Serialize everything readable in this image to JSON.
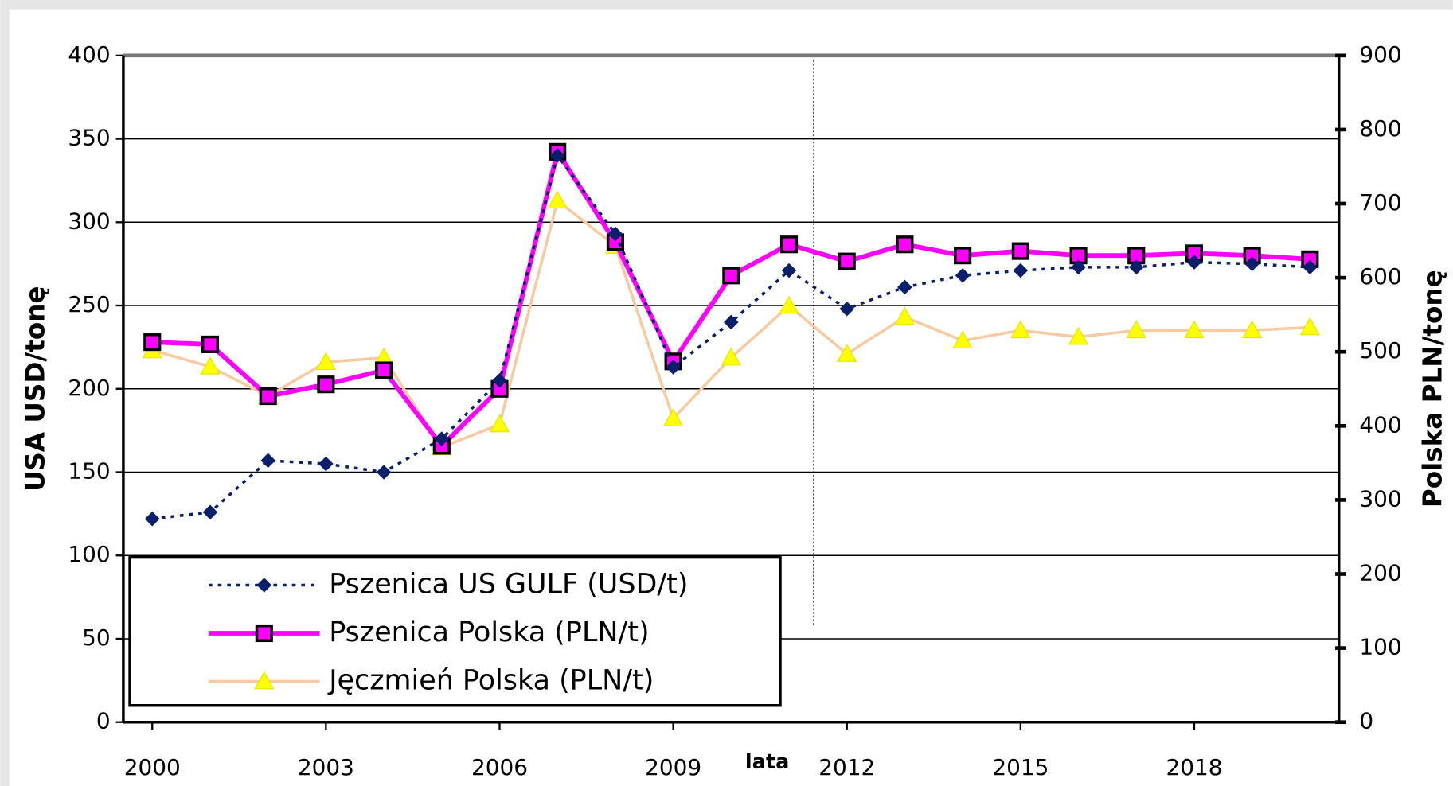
{
  "chart_data": {
    "type": "line",
    "x_label": "lata",
    "y_label": "USA  USD/tonę",
    "y2_label": "Polska PLN/tonę",
    "x": [
      2000,
      2001,
      2002,
      2003,
      2004,
      2005,
      2006,
      2007,
      2008,
      2009,
      2010,
      2011,
      2012,
      2013,
      2014,
      2015,
      2016,
      2017,
      2018,
      2019,
      2020
    ],
    "xlim": [
      1999.5,
      2020.5
    ],
    "xticks": [
      2000,
      2003,
      2006,
      2009,
      2012,
      2015,
      2018
    ],
    "ylim": [
      0,
      400
    ],
    "yticks": [
      0,
      50,
      100,
      150,
      200,
      250,
      300,
      350,
      400
    ],
    "y2lim": [
      0,
      900
    ],
    "y2ticks": [
      0,
      100,
      200,
      300,
      400,
      500,
      600,
      700,
      800,
      900
    ],
    "grid": true,
    "legend": "lower left",
    "series": [
      {
        "name": "Pszenica US GULF (USD/t)",
        "color": "#0a1f6b",
        "marker": "diamond",
        "line_style": "dotted",
        "values": [
          122,
          126,
          157,
          155,
          150,
          170,
          205,
          340,
          293,
          213,
          240,
          271,
          248,
          261,
          268,
          271,
          273,
          273,
          276,
          275,
          273
        ]
      },
      {
        "name": "Pszenica Polska (PLN/t)",
        "color": "#ff00ff",
        "marker": "square",
        "line_style": "solid",
        "axis": "y2",
        "values": [
          513,
          510,
          440,
          456,
          475,
          373,
          450,
          770,
          648,
          487,
          603,
          645,
          622,
          645,
          630,
          636,
          630,
          630,
          633,
          630,
          625
        ]
      },
      {
        "name": "Jęczmień Polska (PLN/t)",
        "color": "#f9c9a0",
        "marker": "triangle",
        "line_style": "solid",
        "axis": "y2",
        "values": [
          502,
          480,
          440,
          486,
          492,
          371,
          402,
          704,
          643,
          410,
          492,
          562,
          497,
          547,
          515,
          529,
          520,
          529,
          529,
          529,
          533
        ]
      }
    ]
  }
}
